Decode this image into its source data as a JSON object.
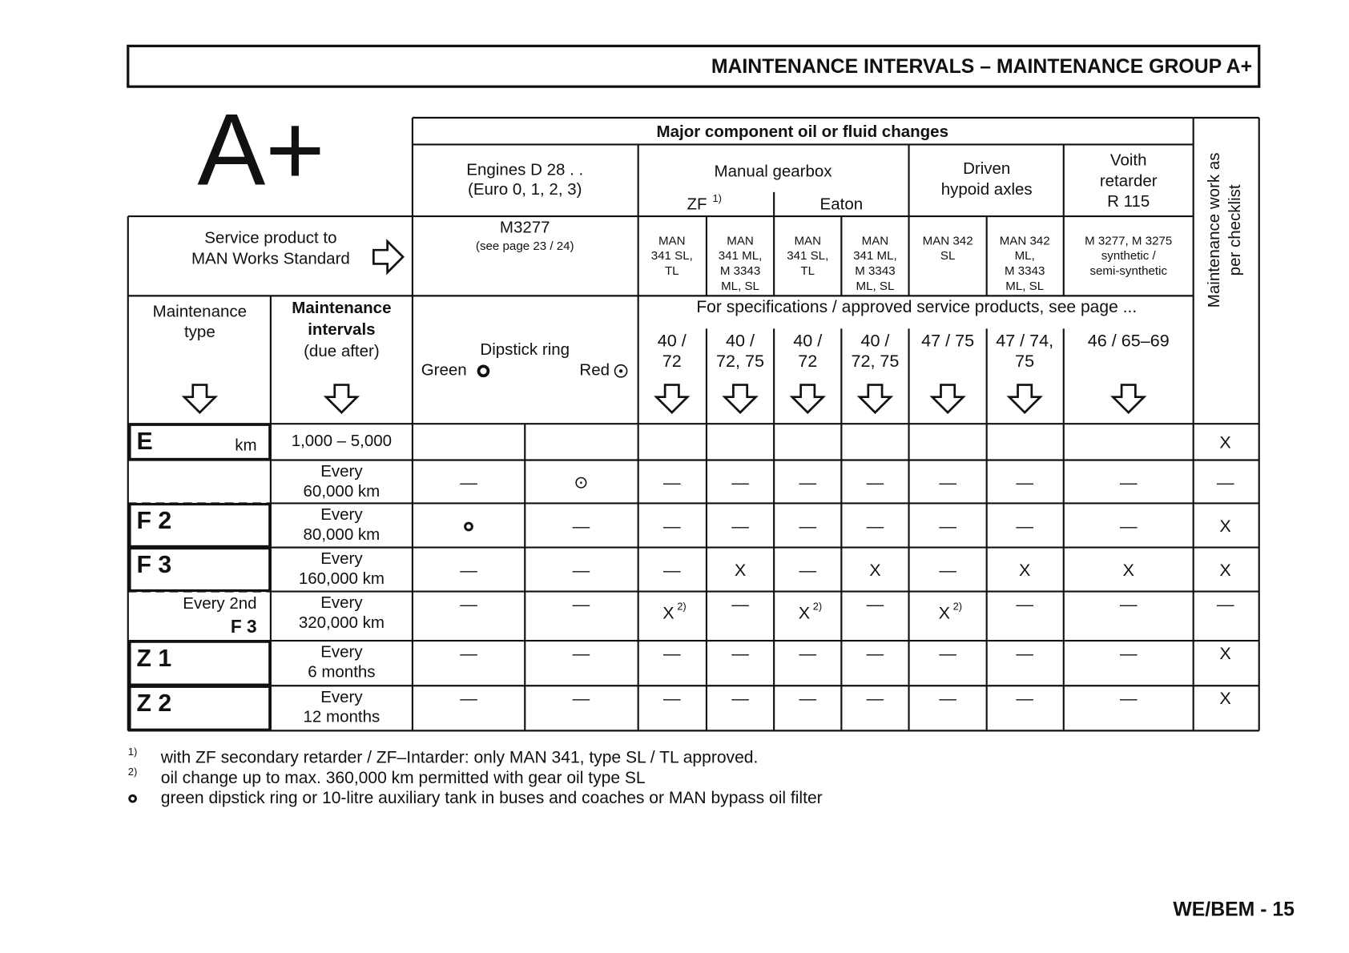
{
  "header": {
    "title": "MAINTENANCE INTERVALS – MAINTENANCE GROUP A+"
  },
  "logo": "A+",
  "table": {
    "group_header": "Major component oil or fluid changes",
    "side_header": [
      "Maintenance work as",
      "per checklist"
    ],
    "service_product": [
      "Service product to",
      "MAN Works Standard"
    ],
    "type_header": [
      "Maintenance",
      "type"
    ],
    "interval_header": [
      "Maintenance",
      "intervals",
      "(due after)"
    ],
    "engines": {
      "title": "Engines D 28 . .",
      "subtitle": "(Euro 0, 1, 2, 3)",
      "product": "M3277",
      "product_note": "(see page 23 / 24)",
      "dipstick": "Dipstick ring",
      "green": "Green",
      "red": "Red"
    },
    "gearbox": {
      "title": "Manual gearbox",
      "zf": "ZF",
      "zf_note": "1)",
      "eaton": "Eaton"
    },
    "axles": [
      "Driven",
      "hypoid axles"
    ],
    "retarder": [
      "Voith",
      "retarder",
      "R 115"
    ],
    "products": [
      [
        "MAN",
        "341 SL,",
        "TL"
      ],
      [
        "MAN",
        "341 ML,",
        "M 3343",
        "ML, SL"
      ],
      [
        "MAN",
        "341 SL,",
        "TL"
      ],
      [
        "MAN",
        "341 ML,",
        "M 3343",
        "ML, SL"
      ],
      [
        "MAN 342",
        "SL"
      ],
      [
        "MAN 342",
        "ML,",
        "M 3343",
        "ML, SL"
      ],
      [
        "M 3277,  M 3275",
        "synthetic /",
        "semi-synthetic"
      ]
    ],
    "spec_note": "For specifications / approved service products, see page ...",
    "spec_pages": [
      [
        "40 /",
        "72"
      ],
      [
        "40 /",
        "72, 75"
      ],
      [
        "40 /",
        "72"
      ],
      [
        "40 /",
        "72, 75"
      ],
      [
        "47 / 75"
      ],
      [
        "47 / 74,",
        "75"
      ],
      [
        "46 / 65–69"
      ]
    ],
    "rows": [
      {
        "type": [
          "E"
        ],
        "unit": "km",
        "interval": [
          "1,000 – 5,000"
        ],
        "cells": [
          null,
          null,
          null,
          null,
          null,
          null,
          null,
          null,
          null,
          "X"
        ]
      },
      {
        "type": null,
        "interval": [
          "Every",
          "60,000 km"
        ],
        "cells": [
          "—",
          "⊙",
          "—",
          "—",
          "—",
          "—",
          "—",
          "—",
          "—",
          "—"
        ]
      },
      {
        "type": [
          "F 2"
        ],
        "interval": [
          "Every",
          "80,000 km"
        ],
        "cells": [
          "○",
          "—",
          "—",
          "—",
          "—",
          "—",
          "—",
          "—",
          "—",
          "X"
        ]
      },
      {
        "type": [
          "F 3"
        ],
        "interval": [
          "Every",
          "160,000 km"
        ],
        "cells": [
          "—",
          "—",
          "—",
          "X",
          "—",
          "X",
          "—",
          "X",
          "X",
          "X"
        ]
      },
      {
        "type": [
          "Every 2nd",
          "F 3"
        ],
        "interval": [
          "Every",
          "320,000 km"
        ],
        "cells": [
          "—",
          "—",
          {
            "text": "X",
            "note": "2)"
          },
          "—",
          {
            "text": "X",
            "note": "2)"
          },
          "—",
          {
            "text": "X",
            "note": "2)"
          },
          "—",
          "—",
          "—"
        ]
      },
      {
        "type": [
          "Z 1"
        ],
        "interval": [
          "Every",
          "6 months"
        ],
        "cells": [
          "—",
          "—",
          "—",
          "—",
          "—",
          "—",
          "—",
          "—",
          "—",
          "X"
        ]
      },
      {
        "type": [
          "Z 2"
        ],
        "interval": [
          "Every",
          "12 months"
        ],
        "cells": [
          "—",
          "—",
          "—",
          "—",
          "—",
          "—",
          "—",
          "—",
          "—",
          "X"
        ]
      }
    ]
  },
  "footnotes": [
    [
      "1)",
      "with ZF secondary retarder / ZF–Intarder: only MAN 341, type SL / TL approved."
    ],
    [
      "2)",
      "oil change up to max. 360,000 km permitted with gear oil type SL"
    ],
    [
      "○",
      "green dipstick ring or 10-litre auxiliary tank in buses and coaches or MAN bypass oil filter"
    ]
  ],
  "footer": "WE/BEM - 15"
}
